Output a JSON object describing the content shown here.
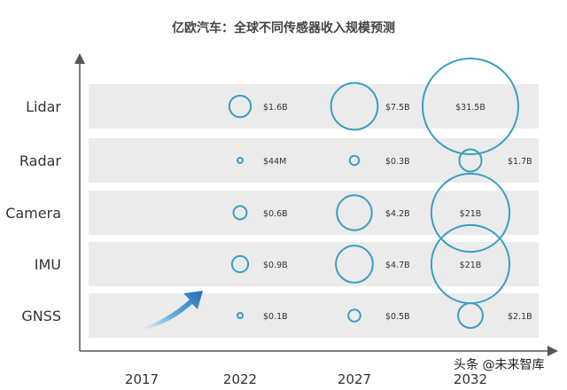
{
  "chart_data": {
    "type": "scatter",
    "title": "亿欧汽车：全球不同传感器收入规模预测",
    "years": [
      "2017",
      "2022",
      "2027",
      "2032"
    ],
    "categories": [
      "Lidar",
      "Radar",
      "Camera",
      "IMU",
      "GNSS"
    ],
    "series": [
      {
        "name": "Lidar",
        "values": [
          1.6,
          7.5,
          31.5
        ],
        "labels": [
          "$1.6B",
          "$7.5B",
          "$31.5B"
        ]
      },
      {
        "name": "Radar",
        "values": [
          0.044,
          0.3,
          1.7
        ],
        "labels": [
          "$44M",
          "$0.3B",
          "$1.7B"
        ]
      },
      {
        "name": "Camera",
        "values": [
          0.6,
          4.2,
          21
        ],
        "labels": [
          "$0.6B",
          "$4.2B",
          "$21B"
        ]
      },
      {
        "name": "IMU",
        "values": [
          0.9,
          4.7,
          21
        ],
        "labels": [
          "$0.9B",
          "$4.7B",
          "$21B"
        ]
      },
      {
        "name": "GNSS",
        "values": [
          0.1,
          0.5,
          2.1
        ],
        "labels": [
          "$0.1B",
          "$0.5B",
          "$2.1B"
        ]
      }
    ],
    "bubble_years": [
      "2022",
      "2027",
      "2032"
    ],
    "unit": "USD",
    "colors": {
      "bubble": "#3a9fc0",
      "band": "#ebebeb",
      "arrow": "#1f7fc4",
      "axis": "#555555"
    }
  },
  "watermark": "头条 @未来智库"
}
